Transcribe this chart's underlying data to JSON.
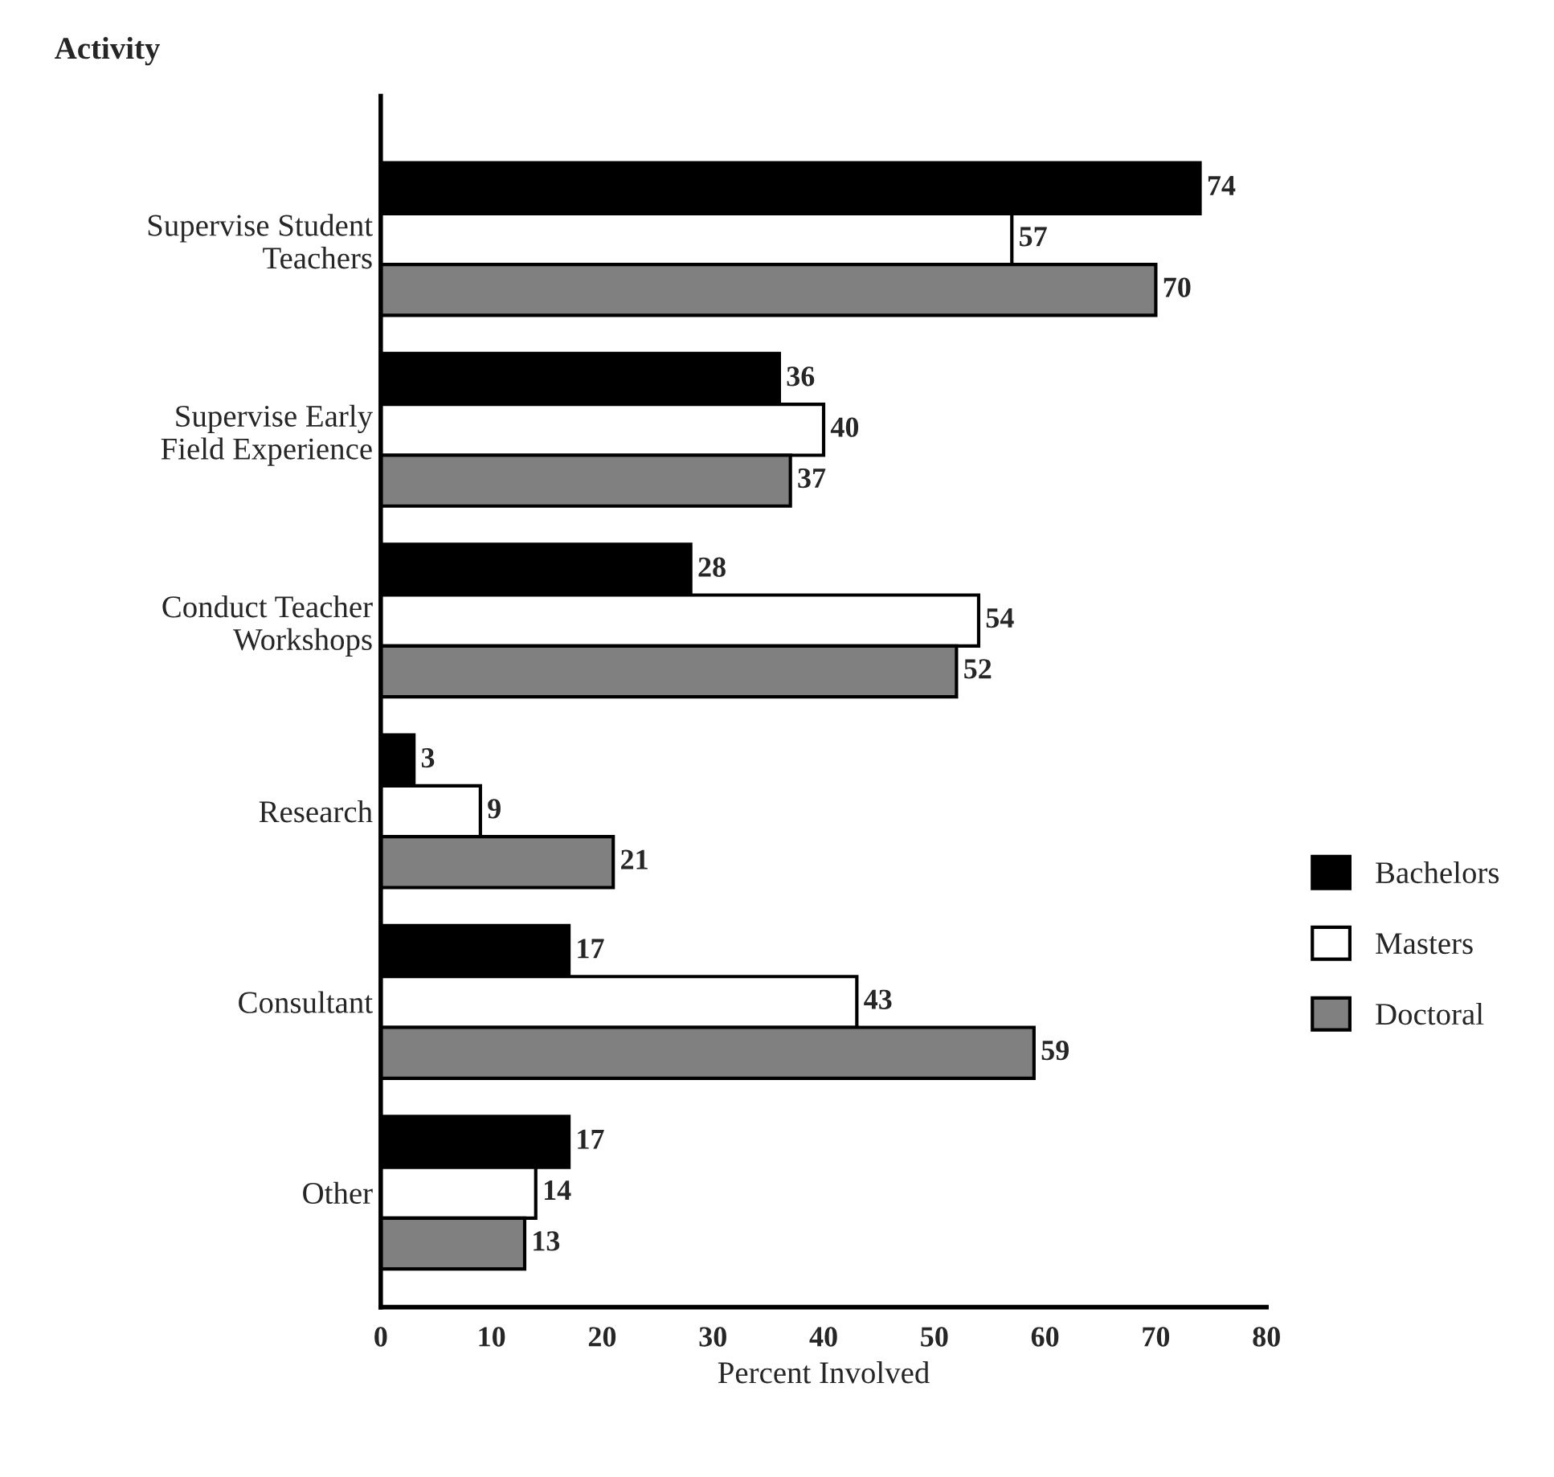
{
  "chart_data": {
    "type": "bar",
    "orientation": "horizontal",
    "ylabel": "Activity",
    "xlabel": "Percent Involved",
    "categories": [
      "Supervise Student\nTeachers",
      "Supervise Early\nField Experience",
      "Conduct Teacher\nWorkshops",
      "Research",
      "Consultant",
      "Other"
    ],
    "series": [
      {
        "name": "Bachelors",
        "color": "#000000",
        "values": [
          74,
          36,
          28,
          3,
          17,
          17
        ]
      },
      {
        "name": "Masters",
        "color": "#ffffff",
        "values": [
          57,
          40,
          54,
          9,
          43,
          14
        ]
      },
      {
        "name": "Doctoral",
        "color": "#808080",
        "values": [
          70,
          37,
          52,
          21,
          59,
          13
        ]
      }
    ],
    "xlim": [
      0,
      80
    ],
    "xticks": [
      0,
      10,
      20,
      30,
      40,
      50,
      60,
      70,
      80
    ],
    "data_labels": true,
    "legend": "right",
    "grid": false
  }
}
